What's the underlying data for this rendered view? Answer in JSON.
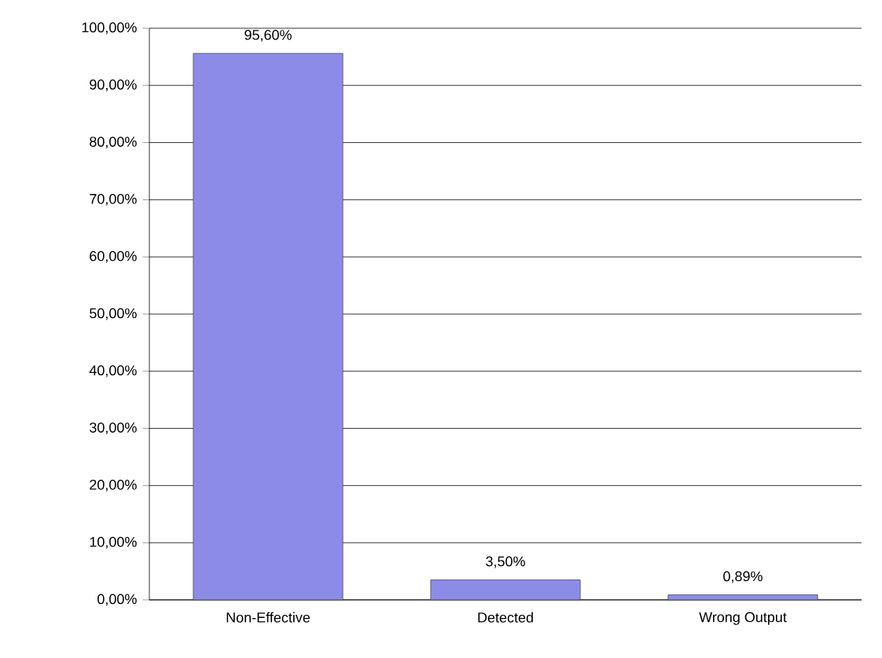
{
  "chart_data": {
    "type": "bar",
    "categories": [
      "Non-Effective",
      "Detected",
      "Wrong Output"
    ],
    "values": [
      95.6,
      3.5,
      0.89
    ],
    "value_labels": [
      "95,60%",
      "3,50%",
      "0,89%"
    ],
    "color": "#8c8ce8",
    "ylim": [
      0,
      100
    ],
    "yticks": [
      {
        "value": 0,
        "label": "0,00%"
      },
      {
        "value": 10,
        "label": "10,00%"
      },
      {
        "value": 20,
        "label": "20,00%"
      },
      {
        "value": 30,
        "label": "30,00%"
      },
      {
        "value": 40,
        "label": "40,00%"
      },
      {
        "value": 50,
        "label": "50,00%"
      },
      {
        "value": 60,
        "label": "60,00%"
      },
      {
        "value": 70,
        "label": "70,00%"
      },
      {
        "value": 80,
        "label": "80,00%"
      },
      {
        "value": 90,
        "label": "90,00%"
      },
      {
        "value": 100,
        "label": "100,00%"
      }
    ],
    "grid": "y"
  }
}
